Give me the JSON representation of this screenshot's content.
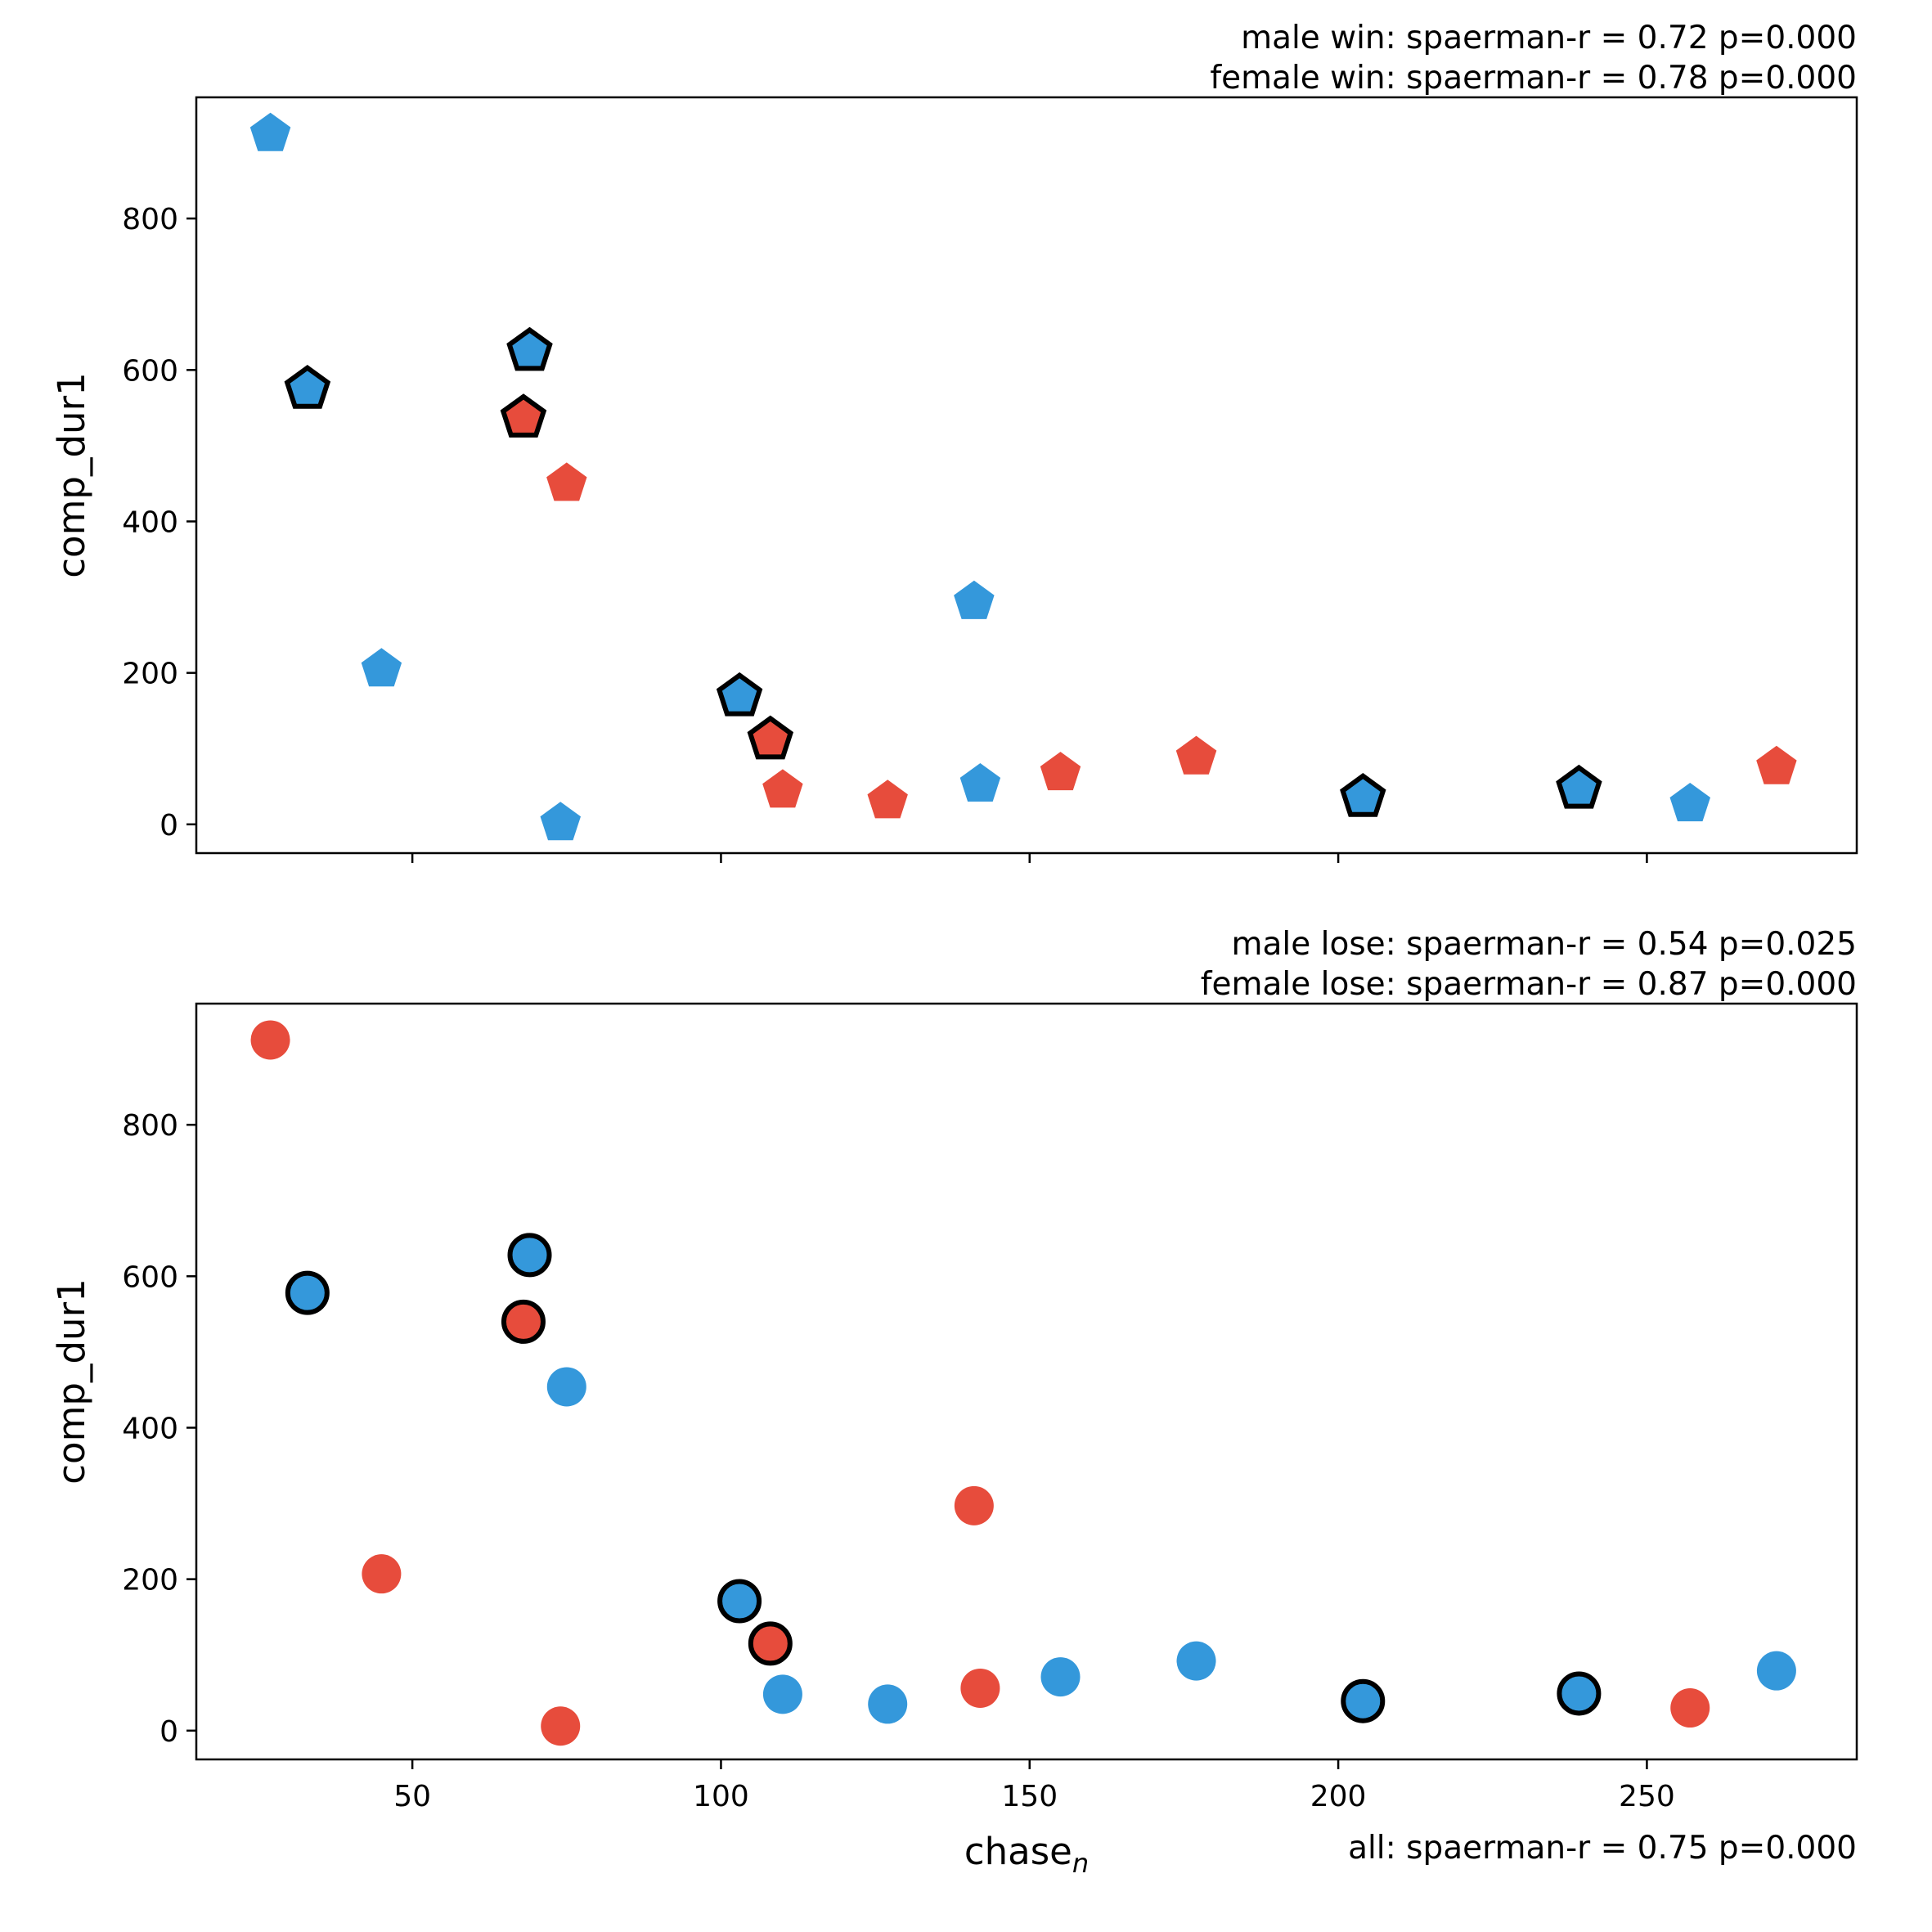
{
  "colors": {
    "male": "#3498db",
    "female": "#e74c3c",
    "highlight_edge": "#000000"
  },
  "shared_x": {
    "label": "chase",
    "label_sub": "n",
    "ticks": [
      50,
      100,
      150,
      200,
      250
    ],
    "xlim": [
      15,
      284
    ]
  },
  "chart_data": [
    {
      "type": "scatter",
      "marker": "pentagon",
      "ylabel": "comp_dur1",
      "ylim": [
        -38,
        960
      ],
      "yticks": [
        0,
        200,
        400,
        600,
        800
      ],
      "annotations": [
        "male win: spaerman-r = 0.72 p=0.000",
        "female win: spaerman-r = 0.78 p=0.000"
      ],
      "points": [
        {
          "x": 27,
          "y": 915,
          "color": "male",
          "edge": false
        },
        {
          "x": 33,
          "y": 578,
          "color": "male",
          "edge": true
        },
        {
          "x": 45,
          "y": 208,
          "color": "male",
          "edge": false
        },
        {
          "x": 68,
          "y": 540,
          "color": "female",
          "edge": true
        },
        {
          "x": 69,
          "y": 628,
          "color": "male",
          "edge": true
        },
        {
          "x": 74,
          "y": 5,
          "color": "male",
          "edge": false
        },
        {
          "x": 75,
          "y": 453,
          "color": "female",
          "edge": false
        },
        {
          "x": 103,
          "y": 172,
          "color": "male",
          "edge": true
        },
        {
          "x": 108,
          "y": 115,
          "color": "female",
          "edge": true
        },
        {
          "x": 110,
          "y": 48,
          "color": "female",
          "edge": false
        },
        {
          "x": 127,
          "y": 34,
          "color": "female",
          "edge": false
        },
        {
          "x": 141,
          "y": 297,
          "color": "male",
          "edge": false
        },
        {
          "x": 142,
          "y": 56,
          "color": "male",
          "edge": false
        },
        {
          "x": 155,
          "y": 71,
          "color": "female",
          "edge": false
        },
        {
          "x": 177,
          "y": 92,
          "color": "female",
          "edge": false
        },
        {
          "x": 204,
          "y": 39,
          "color": "male",
          "edge": true
        },
        {
          "x": 239,
          "y": 50,
          "color": "male",
          "edge": true
        },
        {
          "x": 257,
          "y": 30,
          "color": "male",
          "edge": false
        },
        {
          "x": 271,
          "y": 79,
          "color": "female",
          "edge": false
        }
      ]
    },
    {
      "type": "scatter",
      "marker": "circle",
      "ylabel": "comp_dur1",
      "ylim": [
        -38,
        960
      ],
      "yticks": [
        0,
        200,
        400,
        600,
        800
      ],
      "annotations": [
        "male lose: spaerman-r = 0.54 p=0.025",
        "female lose: spaerman-r = 0.87 p=0.000"
      ],
      "bottom_annotation": "all: spaerman-r = 0.75 p=0.000",
      "points": [
        {
          "x": 27,
          "y": 912,
          "color": "female",
          "edge": false
        },
        {
          "x": 33,
          "y": 578,
          "color": "male",
          "edge": true
        },
        {
          "x": 45,
          "y": 207,
          "color": "female",
          "edge": false
        },
        {
          "x": 68,
          "y": 540,
          "color": "female",
          "edge": true
        },
        {
          "x": 69,
          "y": 628,
          "color": "male",
          "edge": true
        },
        {
          "x": 74,
          "y": 6,
          "color": "female",
          "edge": false
        },
        {
          "x": 75,
          "y": 454,
          "color": "male",
          "edge": false
        },
        {
          "x": 103,
          "y": 171,
          "color": "male",
          "edge": true
        },
        {
          "x": 108,
          "y": 115,
          "color": "female",
          "edge": true
        },
        {
          "x": 110,
          "y": 48,
          "color": "male",
          "edge": false
        },
        {
          "x": 127,
          "y": 35,
          "color": "male",
          "edge": false
        },
        {
          "x": 141,
          "y": 297,
          "color": "female",
          "edge": false
        },
        {
          "x": 142,
          "y": 56,
          "color": "female",
          "edge": false
        },
        {
          "x": 155,
          "y": 71,
          "color": "male",
          "edge": false
        },
        {
          "x": 177,
          "y": 92,
          "color": "male",
          "edge": false
        },
        {
          "x": 204,
          "y": 39,
          "color": "male",
          "edge": true
        },
        {
          "x": 239,
          "y": 49,
          "color": "male",
          "edge": true
        },
        {
          "x": 257,
          "y": 30,
          "color": "female",
          "edge": false
        },
        {
          "x": 271,
          "y": 79,
          "color": "male",
          "edge": false
        }
      ]
    }
  ]
}
